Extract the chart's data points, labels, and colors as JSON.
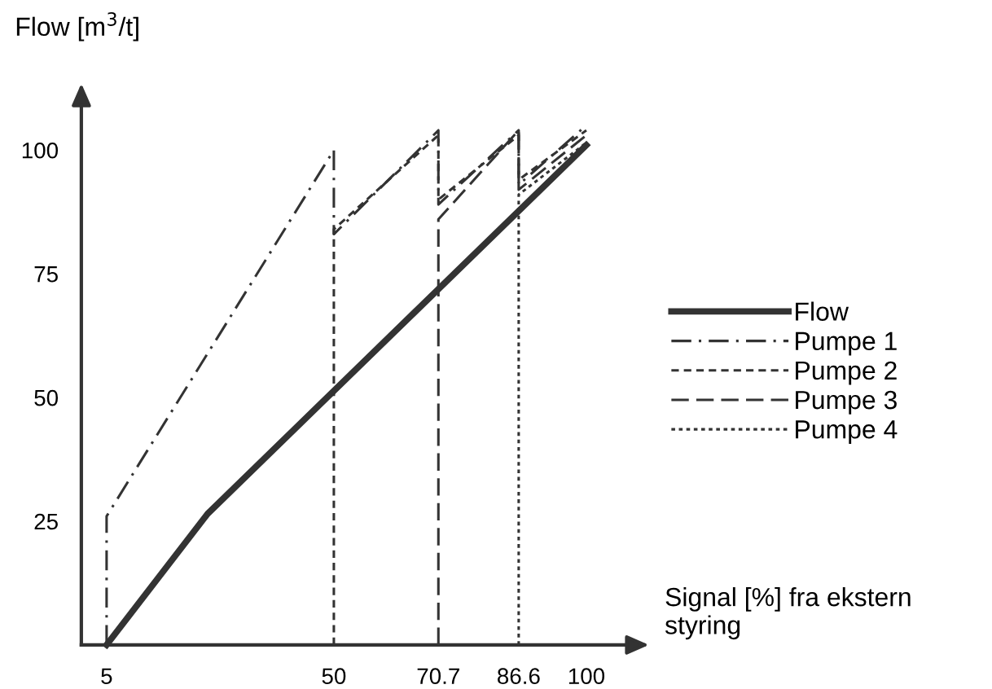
{
  "chart_data": {
    "type": "line",
    "xlabel": "Signal [%] fra ekstern styring",
    "ylabel": "Flow [m$^{3}$/t]",
    "xlim": [
      0,
      110
    ],
    "ylim": [
      0,
      110
    ],
    "xticks": [
      5,
      50,
      70.7,
      86.6,
      100
    ],
    "yticks": [
      25,
      50,
      75,
      100
    ],
    "grid": false,
    "legend": "right",
    "marker": "none",
    "series": [
      {
        "name": "Flow",
        "color": "#333333",
        "line_style": "solid",
        "x": [
          5,
          25,
          100
        ],
        "values": [
          0,
          26.5,
          101
        ]
      },
      {
        "name": "Pumpe 1",
        "color": "#333333",
        "line_style": "dashdot",
        "x": [
          5,
          5,
          50,
          50,
          70.7,
          70.7,
          86.6,
          86.6,
          100
        ],
        "values": [
          0,
          26,
          100,
          83,
          104,
          89,
          104,
          93,
          105
        ]
      },
      {
        "name": "Pumpe 2",
        "color": "#333333",
        "line_style": "dashed",
        "x": [
          50,
          50,
          70.7,
          70.7,
          86.6,
          86.6,
          100
        ],
        "values": [
          0,
          84,
          103,
          90,
          103,
          94,
          104
        ]
      },
      {
        "name": "Pumpe 3",
        "color": "#333333",
        "line_style": "longdash",
        "x": [
          70.7,
          70.7,
          86.6,
          86.6,
          100
        ],
        "values": [
          0,
          86,
          104,
          92,
          103
        ]
      },
      {
        "name": "Pumpe 4",
        "color": "#333333",
        "line_style": "dotted",
        "x": [
          86.6,
          86.6,
          100
        ],
        "values": [
          0,
          91,
          101.5
        ]
      }
    ]
  }
}
